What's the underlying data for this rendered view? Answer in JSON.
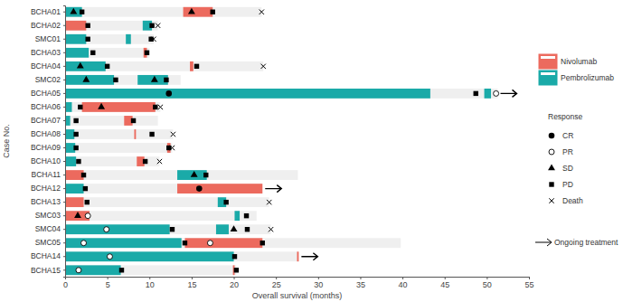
{
  "chart_data": {
    "type": "swimmer",
    "x_label": "Overall survival (months)",
    "y_label": "Case No.",
    "xlim": [
      0,
      55
    ],
    "xticks": [
      0,
      5,
      10,
      15,
      20,
      25,
      30,
      35,
      40,
      45,
      50,
      55
    ],
    "series": [
      {
        "name": "Nivolumab",
        "color": "#ec6a5e"
      },
      {
        "name": "Pembrolizumab",
        "color": "#1aaaa8"
      }
    ],
    "response_title": "Response",
    "responses": [
      {
        "name": "CR",
        "marker": "filled-circle"
      },
      {
        "name": "PR",
        "marker": "open-circle"
      },
      {
        "name": "SD",
        "marker": "triangle"
      },
      {
        "name": "PD",
        "marker": "square"
      },
      {
        "name": "Death",
        "marker": "x"
      }
    ],
    "ongoing_label": "Ongoing treatment",
    "cases": [
      {
        "name": "BCHA01",
        "survival": 23.3,
        "ongoing": false,
        "segments": [
          {
            "drug": "Pembrolizumab",
            "start": 0,
            "end": 2
          },
          {
            "drug": "Nivolumab",
            "start": 14,
            "end": 17.5
          }
        ],
        "responses": [
          {
            "type": "SD",
            "x": 1
          },
          {
            "type": "PD",
            "x": 2
          },
          {
            "type": "SD",
            "x": 15
          },
          {
            "type": "PD",
            "x": 17.5
          },
          {
            "type": "Death",
            "x": 23.3
          }
        ]
      },
      {
        "name": "BCHA02",
        "survival": 11,
        "ongoing": false,
        "segments": [
          {
            "drug": "Nivolumab",
            "start": 0,
            "end": 2.5
          },
          {
            "drug": "Pembrolizumab",
            "start": 9.2,
            "end": 10.3
          }
        ],
        "responses": [
          {
            "type": "PD",
            "x": 2.7
          },
          {
            "type": "PD",
            "x": 10.3
          },
          {
            "type": "Death",
            "x": 11
          }
        ]
      },
      {
        "name": "SMC01",
        "survival": 10.5,
        "ongoing": false,
        "segments": [
          {
            "drug": "Pembrolizumab",
            "start": 0,
            "end": 2.5
          },
          {
            "drug": "Pembrolizumab",
            "start": 7.2,
            "end": 7.8
          }
        ],
        "responses": [
          {
            "type": "PD",
            "x": 2.7
          },
          {
            "type": "PD",
            "x": 10.2
          },
          {
            "type": "Death",
            "x": 10.5
          }
        ]
      },
      {
        "name": "BCHA03",
        "survival": 10,
        "ongoing": false,
        "segments": [
          {
            "drug": "Pembrolizumab",
            "start": 0,
            "end": 2.8
          },
          {
            "drug": "Nivolumab",
            "start": 9.3,
            "end": 9.7
          }
        ],
        "responses": [
          {
            "type": "PD",
            "x": 3.3
          },
          {
            "type": "PD",
            "x": 9.7
          }
        ]
      },
      {
        "name": "BCHA04",
        "survival": 23.5,
        "ongoing": false,
        "segments": [
          {
            "drug": "Pembrolizumab",
            "start": 0,
            "end": 4.8
          },
          {
            "drug": "Nivolumab",
            "start": 14.8,
            "end": 15.2
          }
        ],
        "responses": [
          {
            "type": "SD",
            "x": 1.8
          },
          {
            "type": "PD",
            "x": 5
          },
          {
            "type": "PD",
            "x": 15.6
          },
          {
            "type": "Death",
            "x": 23.5
          }
        ]
      },
      {
        "name": "SMC02",
        "survival": 13.7,
        "ongoing": false,
        "segments": [
          {
            "drug": "Pembrolizumab",
            "start": 0,
            "end": 5.8
          },
          {
            "drug": "Pembrolizumab",
            "start": 8.6,
            "end": 12.2
          }
        ],
        "responses": [
          {
            "type": "SD",
            "x": 2.5
          },
          {
            "type": "PD",
            "x": 6
          },
          {
            "type": "SD",
            "x": 10.6
          },
          {
            "type": "PD",
            "x": 12
          }
        ]
      },
      {
        "name": "BCHA05",
        "survival": 51.3,
        "ongoing": true,
        "segments": [
          {
            "drug": "Pembrolizumab",
            "start": 0,
            "end": 43.3
          },
          {
            "drug": "Pembrolizumab",
            "start": 49.7,
            "end": 50.5
          }
        ],
        "responses": [
          {
            "type": "CR",
            "x": 12.3
          },
          {
            "type": "PD",
            "x": 48.7
          },
          {
            "type": "PR",
            "x": 51.1
          }
        ]
      },
      {
        "name": "BCHA06",
        "survival": 11.3,
        "ongoing": false,
        "segments": [
          {
            "drug": "Pembrolizumab",
            "start": 0,
            "end": 0.8
          },
          {
            "drug": "Nivolumab",
            "start": 2,
            "end": 10.7
          }
        ],
        "responses": [
          {
            "type": "PD",
            "x": 1.8
          },
          {
            "type": "SD",
            "x": 4.3
          },
          {
            "type": "PD",
            "x": 10.7
          },
          {
            "type": "Death",
            "x": 11.3
          }
        ]
      },
      {
        "name": "BCHA07",
        "survival": 11,
        "ongoing": false,
        "segments": [
          {
            "drug": "Pembrolizumab",
            "start": 0,
            "end": 0.6
          },
          {
            "drug": "Nivolumab",
            "start": 7,
            "end": 8
          }
        ],
        "responses": [
          {
            "type": "PD",
            "x": 1.3
          },
          {
            "type": "PD",
            "x": 8.1
          }
        ]
      },
      {
        "name": "BCHA08",
        "survival": 12.8,
        "ongoing": false,
        "segments": [
          {
            "drug": "Pembrolizumab",
            "start": 0,
            "end": 1.1
          },
          {
            "drug": "Nivolumab",
            "start": 8.2,
            "end": 8.4
          }
        ],
        "responses": [
          {
            "type": "PD",
            "x": 1.3
          },
          {
            "type": "PD",
            "x": 10.3
          },
          {
            "type": "Death",
            "x": 12.8
          }
        ]
      },
      {
        "name": "BCHA09",
        "survival": 12.7,
        "ongoing": false,
        "segments": [
          {
            "drug": "Pembrolizumab",
            "start": 0,
            "end": 1.2
          },
          {
            "drug": "Nivolumab",
            "start": 12.1,
            "end": 12.5
          }
        ],
        "responses": [
          {
            "type": "PD",
            "x": 1.3
          },
          {
            "type": "PD",
            "x": 12.3
          },
          {
            "type": "Death",
            "x": 12.7
          }
        ]
      },
      {
        "name": "BCHA10",
        "survival": 11.2,
        "ongoing": false,
        "segments": [
          {
            "drug": "Pembrolizumab",
            "start": 0,
            "end": 1.3
          },
          {
            "drug": "Nivolumab",
            "start": 8.5,
            "end": 9.4
          }
        ],
        "responses": [
          {
            "type": "PD",
            "x": 1.6
          },
          {
            "type": "PD",
            "x": 9.5
          },
          {
            "type": "Death",
            "x": 11.2
          }
        ]
      },
      {
        "name": "BCHA11",
        "survival": 27.6,
        "ongoing": false,
        "segments": [
          {
            "drug": "Nivolumab",
            "start": 0,
            "end": 2.2
          },
          {
            "drug": "Pembrolizumab",
            "start": 13.3,
            "end": 16.8
          }
        ],
        "responses": [
          {
            "type": "PD",
            "x": 2.2
          },
          {
            "type": "SD",
            "x": 15.3
          },
          {
            "type": "PD",
            "x": 16.7
          }
        ]
      },
      {
        "name": "BCHA12",
        "survival": 23.4,
        "ongoing": true,
        "segments": [
          {
            "drug": "Pembrolizumab",
            "start": 0,
            "end": 2.2
          },
          {
            "drug": "Nivolumab",
            "start": 13.3,
            "end": 23.4
          }
        ],
        "responses": [
          {
            "type": "PD",
            "x": 2.4
          },
          {
            "type": "CR",
            "x": 15.9
          }
        ]
      },
      {
        "name": "BCHA13",
        "survival": 24.2,
        "ongoing": false,
        "segments": [
          {
            "drug": "Nivolumab",
            "start": 0,
            "end": 2.2
          },
          {
            "drug": "Pembrolizumab",
            "start": 18.1,
            "end": 19.1
          }
        ],
        "responses": [
          {
            "type": "PD",
            "x": 2.6
          },
          {
            "type": "PD",
            "x": 19.1
          },
          {
            "type": "Death",
            "x": 24.2
          }
        ]
      },
      {
        "name": "SMC03",
        "survival": 22.7,
        "ongoing": false,
        "segments": [
          {
            "drug": "Nivolumab",
            "start": 0,
            "end": 2.9
          },
          {
            "drug": "Pembrolizumab",
            "start": 20.1,
            "end": 20.7
          }
        ],
        "responses": [
          {
            "type": "SD",
            "x": 1.5
          },
          {
            "type": "PR",
            "x": 2.7
          },
          {
            "type": "PD",
            "x": 21.5
          }
        ]
      },
      {
        "name": "SMC04",
        "survival": 24.4,
        "ongoing": false,
        "segments": [
          {
            "drug": "Pembrolizumab",
            "start": 0,
            "end": 12.4
          },
          {
            "drug": "Pembrolizumab",
            "start": 17.9,
            "end": 19.4
          }
        ],
        "responses": [
          {
            "type": "PR",
            "x": 4.9
          },
          {
            "type": "PD",
            "x": 12.7
          },
          {
            "type": "SD",
            "x": 20
          },
          {
            "type": "PD",
            "x": 21.6
          },
          {
            "type": "Death",
            "x": 24.4
          }
        ]
      },
      {
        "name": "SMC05",
        "survival": 39.8,
        "ongoing": false,
        "segments": [
          {
            "drug": "Pembrolizumab",
            "start": 0,
            "end": 13.8
          },
          {
            "drug": "Nivolumab",
            "start": 14.2,
            "end": 23.4
          }
        ],
        "responses": [
          {
            "type": "PR",
            "x": 2.2
          },
          {
            "type": "PD",
            "x": 14.2
          },
          {
            "type": "PR",
            "x": 17.2
          },
          {
            "type": "PD",
            "x": 23.4
          }
        ]
      },
      {
        "name": "BCHA14",
        "survival": 27.7,
        "ongoing": true,
        "segments": [
          {
            "drug": "Pembrolizumab",
            "start": 0,
            "end": 20
          },
          {
            "drug": "Nivolumab",
            "start": 27.5,
            "end": 27.7
          }
        ],
        "responses": [
          {
            "type": "PR",
            "x": 5.3
          },
          {
            "type": "PD",
            "x": 20.1
          }
        ]
      },
      {
        "name": "BCHA15",
        "survival": 20.3,
        "ongoing": false,
        "segments": [
          {
            "drug": "Pembrolizumab",
            "start": 0,
            "end": 6.6
          },
          {
            "drug": "Nivolumab",
            "start": 19.9,
            "end": 20.1
          }
        ],
        "responses": [
          {
            "type": "PR",
            "x": 1.6
          },
          {
            "type": "PD",
            "x": 6.7
          },
          {
            "type": "PD",
            "x": 20.3
          }
        ]
      }
    ]
  }
}
